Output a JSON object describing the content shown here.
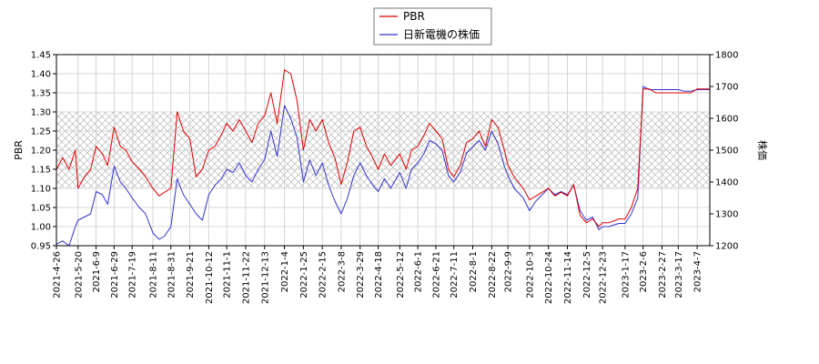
{
  "chart_data": {
    "type": "line",
    "legend": {
      "placement": "top-center",
      "items": [
        {
          "name": "PBR",
          "color": "#dd0000"
        },
        {
          "name": "日新電機の株価",
          "color": "#3333cc"
        }
      ]
    },
    "ylabel_left": "PBR",
    "ylabel_right": "株価",
    "ylim_left": [
      0.95,
      1.45
    ],
    "ylim_right": [
      1200,
      1800
    ],
    "yticks_left": [
      "0.95",
      "1.00",
      "1.05",
      "1.10",
      "1.15",
      "1.20",
      "1.25",
      "1.30",
      "1.35",
      "1.40",
      "1.45"
    ],
    "yticks_right": [
      "1200",
      "1300",
      "1400",
      "1500",
      "1600",
      "1700",
      "1800"
    ],
    "band_left": [
      1.1,
      1.3
    ],
    "grid": true,
    "x_range": [
      "2021-04-26",
      "2023-04-21"
    ],
    "xticks": [
      "2021-4-26",
      "2021-5-20",
      "2021-6-9",
      "2021-6-29",
      "2021-7-19",
      "2021-8-11",
      "2021-8-31",
      "2021-9-21",
      "2021-10-12",
      "2021-11-1",
      "2021-11-22",
      "2021-12-13",
      "2022-1-4",
      "2022-1-25",
      "2022-2-15",
      "2022-3-8",
      "2022-3-29",
      "2022-4-18",
      "2022-5-12",
      "2022-6-1",
      "2022-6-21",
      "2022-7-11",
      "2022-8-1",
      "2022-8-22",
      "2022-9-9",
      "2022-10-3",
      "2022-10-24",
      "2022-11-14",
      "2022-12-5",
      "2022-12-23",
      "2023-1-17",
      "2023-2-6",
      "2023-2-27",
      "2023-3-17",
      "2023-4-7"
    ],
    "series": [
      {
        "name": "PBR",
        "axis": "left",
        "color": "#dd0000",
        "x": [
          "2021-4-26",
          "2021-5-3",
          "2021-5-10",
          "2021-5-17",
          "2021-5-20",
          "2021-5-27",
          "2021-6-3",
          "2021-6-9",
          "2021-6-16",
          "2021-6-22",
          "2021-6-29",
          "2021-7-6",
          "2021-7-12",
          "2021-7-19",
          "2021-7-27",
          "2021-8-3",
          "2021-8-11",
          "2021-8-18",
          "2021-8-24",
          "2021-8-31",
          "2021-9-7",
          "2021-9-14",
          "2021-9-21",
          "2021-9-28",
          "2021-10-5",
          "2021-10-12",
          "2021-10-19",
          "2021-10-26",
          "2021-11-1",
          "2021-11-8",
          "2021-11-15",
          "2021-11-22",
          "2021-11-29",
          "2021-12-6",
          "2021-12-13",
          "2021-12-20",
          "2021-12-27",
          "2022-1-4",
          "2022-1-11",
          "2022-1-18",
          "2022-1-25",
          "2022-2-1",
          "2022-2-8",
          "2022-2-15",
          "2022-2-22",
          "2022-3-1",
          "2022-3-8",
          "2022-3-15",
          "2022-3-22",
          "2022-3-29",
          "2022-4-5",
          "2022-4-12",
          "2022-4-18",
          "2022-4-25",
          "2022-5-2",
          "2022-5-12",
          "2022-5-19",
          "2022-5-25",
          "2022-6-1",
          "2022-6-8",
          "2022-6-14",
          "2022-6-21",
          "2022-6-28",
          "2022-7-5",
          "2022-7-11",
          "2022-7-18",
          "2022-7-25",
          "2022-8-1",
          "2022-8-8",
          "2022-8-15",
          "2022-8-22",
          "2022-8-29",
          "2022-9-5",
          "2022-9-9",
          "2022-9-16",
          "2022-9-26",
          "2022-10-3",
          "2022-10-10",
          "2022-10-17",
          "2022-10-24",
          "2022-10-31",
          "2022-11-7",
          "2022-11-14",
          "2022-11-21",
          "2022-11-28",
          "2022-12-5",
          "2022-12-12",
          "2022-12-19",
          "2022-12-23",
          "2022-12-30",
          "2023-1-10",
          "2023-1-17",
          "2023-1-24",
          "2023-1-31",
          "2023-2-6",
          "2023-2-13",
          "2023-2-20",
          "2023-2-27",
          "2023-3-6",
          "2023-3-13",
          "2023-3-17",
          "2023-3-24",
          "2023-3-31",
          "2023-4-7",
          "2023-4-14",
          "2023-4-21"
        ],
        "values": [
          1.15,
          1.18,
          1.15,
          1.2,
          1.1,
          1.13,
          1.15,
          1.21,
          1.19,
          1.16,
          1.26,
          1.21,
          1.2,
          1.17,
          1.15,
          1.13,
          1.1,
          1.08,
          1.09,
          1.1,
          1.3,
          1.25,
          1.23,
          1.13,
          1.15,
          1.2,
          1.21,
          1.24,
          1.27,
          1.25,
          1.28,
          1.25,
          1.22,
          1.27,
          1.29,
          1.35,
          1.27,
          1.41,
          1.4,
          1.33,
          1.2,
          1.28,
          1.25,
          1.28,
          1.22,
          1.18,
          1.11,
          1.17,
          1.25,
          1.26,
          1.21,
          1.18,
          1.15,
          1.19,
          1.16,
          1.19,
          1.15,
          1.2,
          1.21,
          1.24,
          1.27,
          1.25,
          1.23,
          1.15,
          1.13,
          1.16,
          1.22,
          1.23,
          1.25,
          1.21,
          1.28,
          1.26,
          1.2,
          1.16,
          1.13,
          1.1,
          1.07,
          1.08,
          1.09,
          1.1,
          1.08,
          1.09,
          1.08,
          1.11,
          1.03,
          1.01,
          1.02,
          1.0,
          1.01,
          1.01,
          1.02,
          1.02,
          1.05,
          1.1,
          1.36,
          1.36,
          1.35,
          1.35,
          1.35,
          1.35,
          1.35,
          1.35,
          1.35,
          1.36,
          1.36,
          1.36
        ]
      },
      {
        "name": "日新電機の株価",
        "axis": "right",
        "color": "#3333cc",
        "x": [
          "2021-4-26",
          "2021-5-3",
          "2021-5-10",
          "2021-5-17",
          "2021-5-20",
          "2021-5-27",
          "2021-6-3",
          "2021-6-9",
          "2021-6-16",
          "2021-6-22",
          "2021-6-29",
          "2021-7-6",
          "2021-7-12",
          "2021-7-19",
          "2021-7-27",
          "2021-8-3",
          "2021-8-11",
          "2021-8-18",
          "2021-8-24",
          "2021-8-31",
          "2021-9-7",
          "2021-9-14",
          "2021-9-21",
          "2021-9-28",
          "2021-10-5",
          "2021-10-12",
          "2021-10-19",
          "2021-10-26",
          "2021-11-1",
          "2021-11-8",
          "2021-11-15",
          "2021-11-22",
          "2021-11-29",
          "2021-12-6",
          "2021-12-13",
          "2021-12-20",
          "2021-12-27",
          "2022-1-4",
          "2022-1-11",
          "2022-1-18",
          "2022-1-25",
          "2022-2-1",
          "2022-2-8",
          "2022-2-15",
          "2022-2-22",
          "2022-3-1",
          "2022-3-8",
          "2022-3-15",
          "2022-3-22",
          "2022-3-29",
          "2022-4-5",
          "2022-4-12",
          "2022-4-18",
          "2022-4-25",
          "2022-5-2",
          "2022-5-12",
          "2022-5-19",
          "2022-5-25",
          "2022-6-1",
          "2022-6-8",
          "2022-6-14",
          "2022-6-21",
          "2022-6-28",
          "2022-7-5",
          "2022-7-11",
          "2022-7-18",
          "2022-7-25",
          "2022-8-1",
          "2022-8-8",
          "2022-8-15",
          "2022-8-22",
          "2022-8-29",
          "2022-9-5",
          "2022-9-9",
          "2022-9-16",
          "2022-9-26",
          "2022-10-3",
          "2022-10-10",
          "2022-10-17",
          "2022-10-24",
          "2022-10-31",
          "2022-11-7",
          "2022-11-14",
          "2022-11-21",
          "2022-11-28",
          "2022-12-5",
          "2022-12-12",
          "2022-12-19",
          "2022-12-23",
          "2022-12-30",
          "2023-1-10",
          "2023-1-17",
          "2023-1-24",
          "2023-1-31",
          "2023-2-6",
          "2023-2-13",
          "2023-2-20",
          "2023-2-27",
          "2023-3-6",
          "2023-3-13",
          "2023-3-17",
          "2023-3-24",
          "2023-3-31",
          "2023-4-7",
          "2023-4-14",
          "2023-4-21"
        ],
        "values": [
          1205,
          1215,
          1200,
          1260,
          1280,
          1290,
          1300,
          1370,
          1360,
          1330,
          1450,
          1400,
          1380,
          1350,
          1320,
          1300,
          1240,
          1220,
          1230,
          1260,
          1410,
          1360,
          1330,
          1300,
          1280,
          1360,
          1390,
          1410,
          1440,
          1430,
          1460,
          1420,
          1400,
          1440,
          1470,
          1560,
          1480,
          1640,
          1600,
          1540,
          1400,
          1470,
          1420,
          1460,
          1390,
          1340,
          1300,
          1350,
          1420,
          1460,
          1420,
          1390,
          1370,
          1410,
          1380,
          1430,
          1380,
          1440,
          1460,
          1490,
          1530,
          1520,
          1500,
          1420,
          1400,
          1430,
          1490,
          1510,
          1530,
          1500,
          1560,
          1520,
          1450,
          1420,
          1380,
          1350,
          1310,
          1340,
          1360,
          1380,
          1360,
          1370,
          1360,
          1390,
          1310,
          1280,
          1290,
          1250,
          1260,
          1260,
          1270,
          1270,
          1300,
          1350,
          1700,
          1690,
          1690,
          1690,
          1690,
          1690,
          1690,
          1685,
          1685,
          1690,
          1690,
          1690
        ]
      }
    ]
  }
}
